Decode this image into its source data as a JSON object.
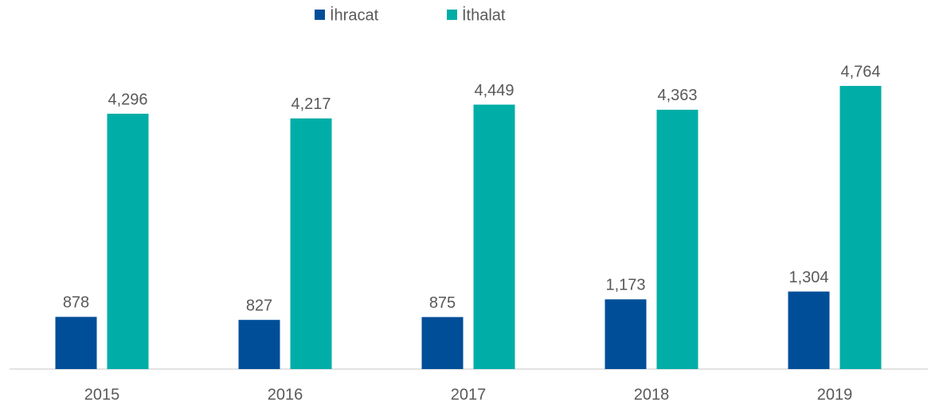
{
  "chart_data": {
    "type": "bar",
    "categories": [
      "2015",
      "2016",
      "2017",
      "2018",
      "2019"
    ],
    "series": [
      {
        "name": "İhracat",
        "color": "#004e98",
        "values": [
          878,
          827,
          875,
          1173,
          1304
        ],
        "value_labels": [
          "878",
          "827",
          "875",
          "1,173",
          "1,304"
        ]
      },
      {
        "name": "İthalat",
        "color": "#00aea7",
        "values": [
          4296,
          4217,
          4449,
          4363,
          4764
        ],
        "value_labels": [
          "4,296",
          "4,217",
          "4,449",
          "4,363",
          "4,764"
        ]
      }
    ],
    "legend": "top"
  }
}
